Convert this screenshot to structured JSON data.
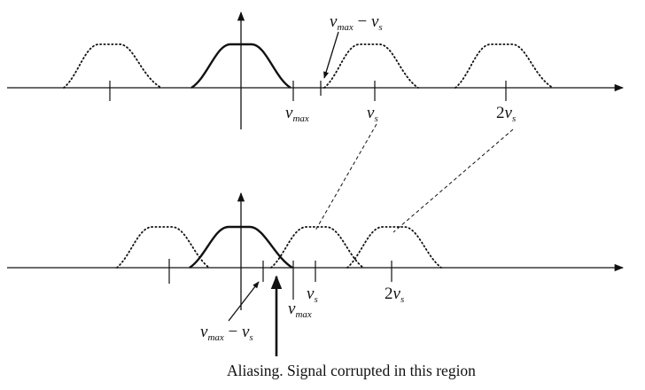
{
  "labels": {
    "vmax_top": {
      "sym": "ν",
      "sub": "max"
    },
    "vs_top": {
      "sym": "ν",
      "sub": "s"
    },
    "twovs_top": {
      "pre": "2",
      "sym": "ν",
      "sub": "s"
    },
    "diff_top": {
      "sym1": "ν",
      "sub1": "max",
      "op": " − ",
      "sym2": "ν",
      "sub2": "s"
    },
    "vs_bot": {
      "sym": "ν",
      "sub": "s"
    },
    "twovs_bot": {
      "pre": "2",
      "sym": "ν",
      "sub": "s"
    },
    "vmax_bot": {
      "sym": "ν",
      "sub": "max"
    },
    "diff_bot": {
      "sym1": "ν",
      "sub1": "max",
      "op": " − ",
      "sym2": "ν",
      "sub2": "s"
    },
    "caption": "Aliasing.  Signal corrupted in this region"
  }
}
